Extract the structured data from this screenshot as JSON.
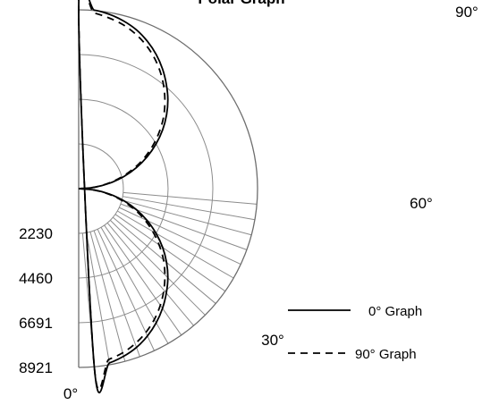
{
  "chart_data": {
    "type": "line",
    "title": "Polar Graph",
    "radial_ticks": [
      {
        "label": "2230",
        "value": 2230
      },
      {
        "label": "4460",
        "value": 4460
      },
      {
        "label": "6691",
        "value": 6691
      },
      {
        "label": "8921",
        "value": 8921
      }
    ],
    "r_max": 8921,
    "angle_ticks": [
      {
        "label": "0°",
        "angle": 0
      },
      {
        "label": "30°",
        "angle": 30
      },
      {
        "label": "60°",
        "angle": 60
      },
      {
        "label": "90°",
        "angle": 90
      }
    ],
    "series": [
      {
        "name": "0° Graph",
        "style": "solid",
        "points": [
          [
            0,
            8921
          ],
          [
            5,
            8940
          ],
          [
            10,
            8830
          ],
          [
            15,
            8660
          ],
          [
            20,
            8430
          ],
          [
            25,
            8110
          ],
          [
            30,
            7730
          ],
          [
            35,
            7290
          ],
          [
            40,
            6800
          ],
          [
            45,
            6290
          ],
          [
            50,
            5720
          ],
          [
            55,
            5110
          ],
          [
            60,
            4450
          ],
          [
            65,
            3770
          ],
          [
            70,
            3060
          ],
          [
            75,
            2330
          ],
          [
            80,
            1560
          ],
          [
            85,
            790
          ],
          [
            90,
            0
          ]
        ]
      },
      {
        "name": "90° Graph",
        "style": "dashed",
        "points": [
          [
            0,
            8921
          ],
          [
            5,
            8800
          ],
          [
            10,
            8650
          ],
          [
            15,
            8480
          ],
          [
            20,
            8230
          ],
          [
            25,
            7920
          ],
          [
            30,
            7540
          ],
          [
            35,
            7100
          ],
          [
            40,
            6610
          ],
          [
            45,
            6080
          ],
          [
            50,
            5520
          ],
          [
            55,
            4900
          ],
          [
            60,
            4260
          ],
          [
            65,
            3600
          ],
          [
            70,
            2910
          ],
          [
            75,
            2190
          ],
          [
            80,
            1470
          ],
          [
            85,
            740
          ],
          [
            90,
            0
          ]
        ]
      }
    ],
    "legend_position": "bottom-right",
    "colors": {
      "series": "#000000",
      "grid": "#8c8c8c"
    }
  }
}
